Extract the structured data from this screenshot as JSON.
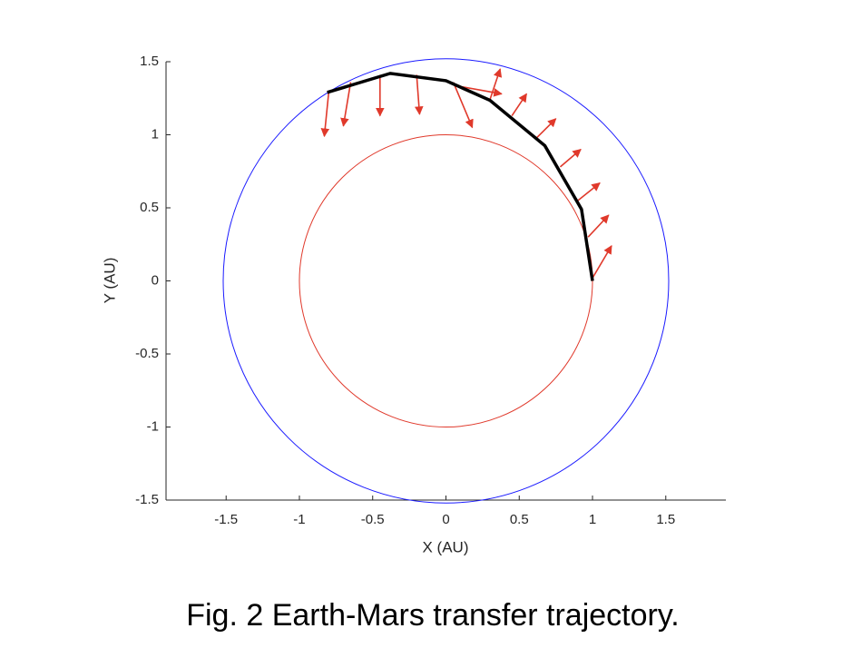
{
  "chart_data": {
    "type": "trajectory",
    "caption": "Fig. 2 Earth-Mars transfer trajectory.",
    "xlabel": "X (AU)",
    "ylabel": "Y (AU)",
    "xlim": [
      -1.91,
      1.91
    ],
    "ylim": [
      -1.5,
      1.5
    ],
    "xticks": [
      -1.5,
      -1,
      -0.5,
      0,
      0.5,
      1,
      1.5
    ],
    "yticks": [
      -1.5,
      -1,
      -0.5,
      0,
      0.5,
      1,
      1.5
    ],
    "orbits": [
      {
        "radius": 1,
        "color": "#e0392b"
      },
      {
        "radius": 1.52,
        "color": "#1a1aff"
      }
    ],
    "trajectory": {
      "color": "#000000",
      "x": [
        1.0,
        0.925,
        0.675,
        0.3,
        0.0,
        -0.38,
        -0.81
      ],
      "y": [
        0.0,
        0.49,
        0.925,
        1.236,
        1.37,
        1.42,
        1.29
      ]
    },
    "thrust": {
      "color": "#e0392b",
      "x": [
        1.0,
        0.97,
        0.9,
        0.78,
        0.62,
        0.45,
        0.3,
        0.1,
        0.05,
        -0.2,
        -0.45,
        -0.65,
        -0.8
      ],
      "y": [
        0.02,
        0.3,
        0.55,
        0.78,
        0.98,
        1.13,
        1.24,
        1.33,
        1.36,
        1.41,
        1.41,
        1.36,
        1.29
      ],
      "u": [
        0.13,
        0.14,
        0.15,
        0.14,
        0.13,
        0.1,
        0.07,
        0.28,
        0.13,
        0.02,
        0.0,
        -0.05,
        -0.03
      ],
      "v": [
        0.22,
        0.15,
        0.12,
        0.12,
        0.13,
        0.15,
        0.21,
        -0.05,
        -0.31,
        -0.27,
        -0.28,
        -0.3,
        -0.3
      ]
    }
  }
}
